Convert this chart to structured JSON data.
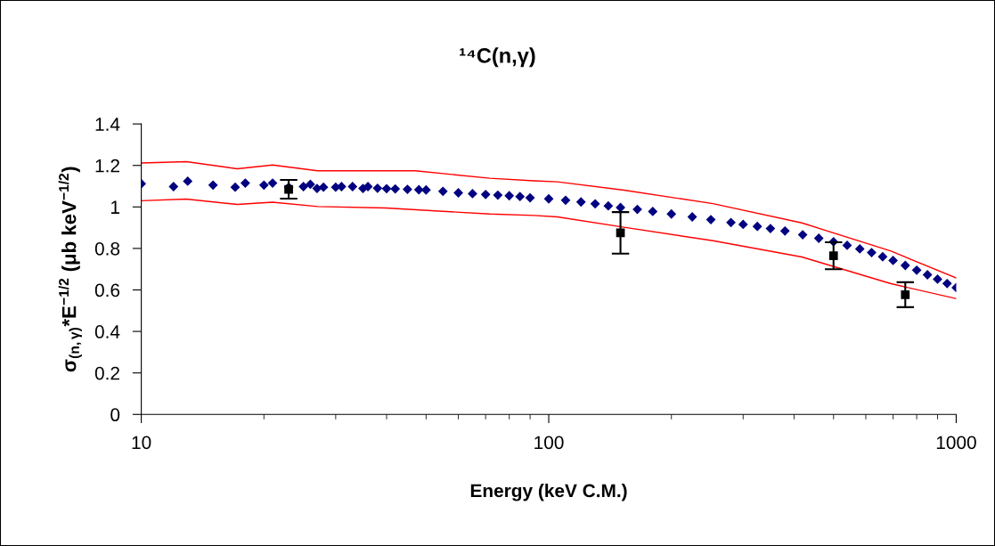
{
  "chart_data": {
    "type": "scatter",
    "title": "¹⁴C(n,γ)",
    "xlabel": "Energy (keV C.M.)",
    "ylabel": "σ$_{(n,γ)}$*E$^{−1/2}$ (μb keV$^{−1/2}$)",
    "log": "x",
    "xlim": [
      10,
      1000
    ],
    "xticks": [
      10,
      100,
      1000
    ],
    "ylim": [
      0,
      1.4
    ],
    "yticks": [
      0,
      0.2,
      0.4,
      0.6,
      0.8,
      1,
      1.2,
      1.4
    ],
    "grid": false,
    "series": [
      {
        "type": "line",
        "color": "#ff0000",
        "marker": "none",
        "x": [
          10,
          12.9,
          17.2,
          21,
          27.1,
          47.1,
          71.7,
          92,
          105,
          153,
          253,
          418,
          692,
          1000
        ],
        "values": [
          1.212,
          1.218,
          1.184,
          1.202,
          1.174,
          1.174,
          1.138,
          1.126,
          1.121,
          1.081,
          1.016,
          0.923,
          0.787,
          0.658
        ]
      },
      {
        "type": "line",
        "color": "#ff0000",
        "marker": "none",
        "x": [
          10,
          12.9,
          17.2,
          21,
          27.1,
          39.8,
          71.7,
          92,
          105,
          153,
          253,
          418,
          692,
          1000
        ],
        "values": [
          1.03,
          1.038,
          1.012,
          1.023,
          1.002,
          0.995,
          0.966,
          0.959,
          0.952,
          0.902,
          0.837,
          0.759,
          0.63,
          0.558
        ]
      },
      {
        "color": "#000080",
        "marker": "diamond",
        "x": [
          10,
          12,
          13,
          15,
          17,
          18,
          20,
          21,
          23,
          25,
          26,
          27,
          28,
          30,
          31,
          33,
          35,
          36,
          38,
          40,
          42,
          45,
          48,
          50,
          55,
          60,
          65,
          70,
          75,
          80,
          85,
          90,
          100,
          110,
          120,
          130,
          140,
          150,
          165,
          180,
          200,
          225,
          250,
          280,
          300,
          325,
          350,
          380,
          420,
          460,
          500,
          540,
          580,
          620,
          660,
          700,
          750,
          800,
          850,
          900,
          950,
          1000
        ],
        "values": [
          1.112,
          1.098,
          1.124,
          1.105,
          1.095,
          1.115,
          1.105,
          1.115,
          1.095,
          1.098,
          1.109,
          1.089,
          1.095,
          1.095,
          1.098,
          1.098,
          1.089,
          1.098,
          1.09,
          1.088,
          1.087,
          1.085,
          1.083,
          1.082,
          1.075,
          1.068,
          1.064,
          1.06,
          1.057,
          1.054,
          1.05,
          1.044,
          1.039,
          1.032,
          1.024,
          1.015,
          1.005,
          0.997,
          0.988,
          0.978,
          0.966,
          0.952,
          0.939,
          0.925,
          0.916,
          0.906,
          0.896,
          0.884,
          0.866,
          0.849,
          0.832,
          0.815,
          0.798,
          0.78,
          0.76,
          0.742,
          0.718,
          0.695,
          0.673,
          0.652,
          0.631,
          0.611
        ]
      },
      {
        "color": "#000000",
        "marker": "square",
        "x": [
          23,
          150,
          500,
          750
        ],
        "values": [
          1.085,
          0.875,
          0.765,
          0.577
        ],
        "errors": [
          0.045,
          0.1,
          0.065,
          0.06
        ]
      }
    ]
  }
}
